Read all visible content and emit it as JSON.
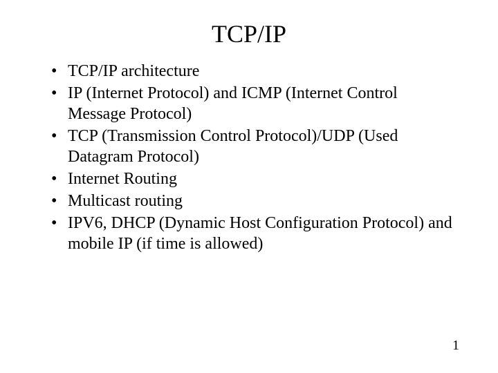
{
  "slide": {
    "title": "TCP/IP",
    "bullets": [
      "TCP/IP architecture",
      "IP (Internet Protocol) and ICMP (Internet Control Message Protocol)",
      "TCP (Transmission Control Protocol)/UDP (Used Datagram Protocol)",
      "Internet Routing",
      "Multicast routing",
      "IPV6, DHCP (Dynamic Host Configuration Protocol) and mobile IP (if time is allowed)"
    ],
    "page_number": "1",
    "colors": {
      "background": "#ffffff",
      "text": "#000000"
    },
    "typography": {
      "font_family": "Times New Roman",
      "title_fontsize_pt": 28,
      "body_fontsize_pt": 18,
      "pagenum_fontsize_pt": 15
    }
  }
}
